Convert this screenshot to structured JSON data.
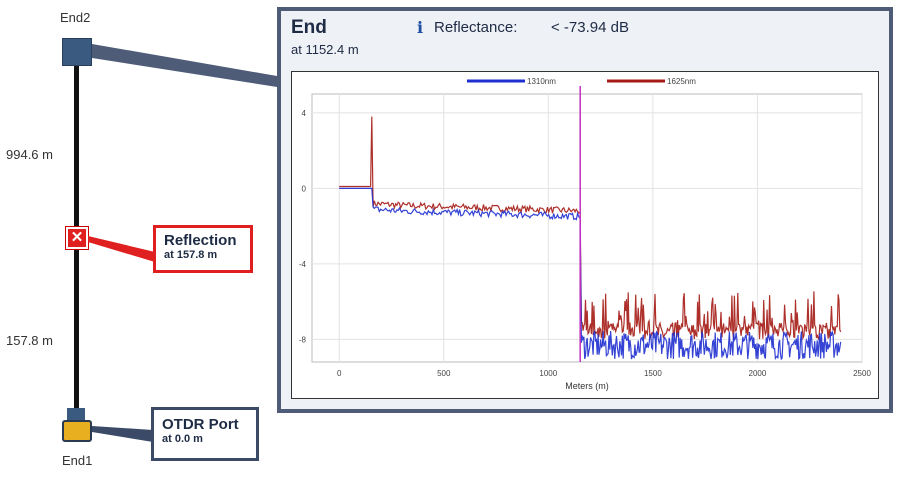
{
  "left_labels": {
    "end2": "End2",
    "end1": "End1",
    "dist_upper": "994.6 m",
    "dist_lower": "157.8 m"
  },
  "reflection_callout": {
    "title": "Reflection",
    "sub": "at 157.8 m",
    "marker_glyph": "✕"
  },
  "port_callout": {
    "title": "OTDR Port",
    "sub": "at 0.0 m"
  },
  "panel": {
    "title": "End",
    "sub": "at 1152.4 m",
    "info_icon": "info-icon",
    "reflectance_label": "Reflectance:",
    "reflectance_value": "< -73.94 dB"
  },
  "colors": {
    "s1310": "#1f2fd0",
    "s1625": "#a41a14",
    "cursor": "#c030c0",
    "panel_border": "#4e5c78",
    "reflection_red": "#e02020",
    "callout_blue": "#3b4a66"
  },
  "chart_data": {
    "type": "line",
    "title": "",
    "xlabel": "Meters (m)",
    "ylabel": "",
    "xlim": [
      -130,
      2500
    ],
    "ylim": [
      -9.2,
      5.0
    ],
    "xticks": [
      "0",
      "500",
      "1000",
      "1500",
      "2000",
      "2500"
    ],
    "xtick_values": [
      0,
      500,
      1000,
      1500,
      2000,
      2500
    ],
    "yticks": [
      "4",
      "0",
      "-4",
      "-8"
    ],
    "ytick_values": [
      4,
      0,
      -4,
      -8
    ],
    "grid": true,
    "legend": "top",
    "cursor_x": 1152.4,
    "series": [
      {
        "name": "1310nm",
        "x": [
          0,
          150,
          157.8,
          160,
          300,
          600,
          900,
          1152,
          1153,
          1160,
          1500,
          1800,
          2100,
          2400
        ],
        "y": [
          0.0,
          0.0,
          0.0,
          -1.1,
          -1.2,
          -1.3,
          -1.4,
          -1.5,
          -8.0,
          -8.3,
          -8.3,
          -8.3,
          -8.3,
          -8.3
        ]
      },
      {
        "name": "1625nm",
        "x": [
          0,
          150,
          157.8,
          160,
          300,
          600,
          900,
          1152,
          1153,
          1160,
          1500,
          1800,
          2100,
          2400
        ],
        "y": [
          0.1,
          0.1,
          3.8,
          -0.8,
          -0.9,
          -1.0,
          -1.1,
          -1.2,
          -7.6,
          -7.7,
          -7.7,
          -7.7,
          -7.7,
          -7.7
        ]
      }
    ]
  }
}
